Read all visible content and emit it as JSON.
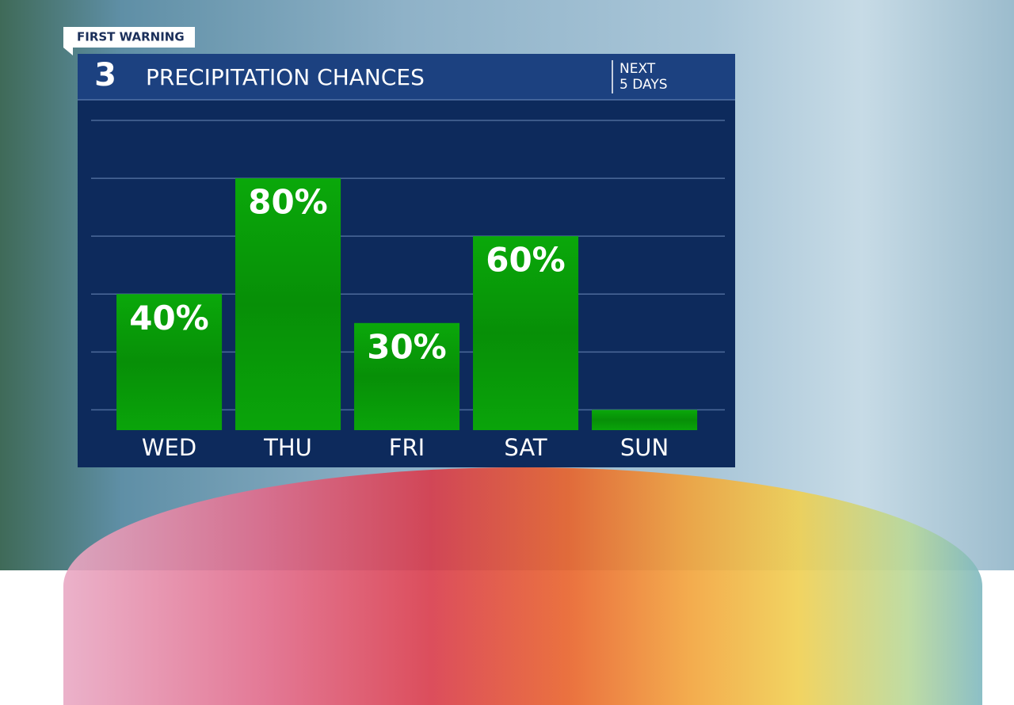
{
  "chart_data": {
    "type": "bar",
    "badge": "FIRST WARNING",
    "logo": "3",
    "title": "PRECIPITATION CHANCES",
    "subtitle_lines": [
      "NEXT",
      "5 DAYS"
    ],
    "categories": [
      "WED",
      "THU",
      "FRI",
      "SAT",
      "SUN"
    ],
    "values": [
      40,
      80,
      30,
      60,
      0
    ],
    "value_labels": [
      "40%",
      "80%",
      "30%",
      "60%",
      null
    ],
    "color": "#0a9e0a",
    "ylim": [
      -7,
      100
    ],
    "yticks": [
      0,
      20,
      40,
      60,
      80,
      100
    ],
    "grid": true
  }
}
